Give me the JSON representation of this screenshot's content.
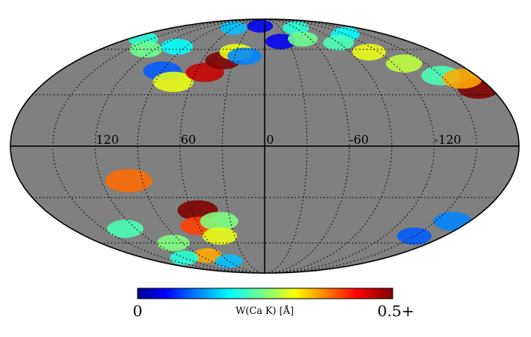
{
  "chart_data": {
    "type": "heatmap",
    "projection": "mollweide",
    "coordinate_system": "galactic",
    "lon_ticks": [
      "120",
      "60",
      "0",
      "-60",
      "-120"
    ],
    "lon_tick_values": [
      120,
      60,
      0,
      -60,
      -120
    ],
    "graticule_lat_values": [
      -60,
      -30,
      0,
      30,
      60
    ],
    "graticule_lon_values": [
      150,
      120,
      90,
      60,
      30,
      0,
      -30,
      -60,
      -90,
      -120,
      -150
    ],
    "masked_color": "#808080",
    "colorbar": {
      "label": "W(Ca K) [Å]",
      "min_label": "0",
      "max_label": "0.5+",
      "range": [
        0,
        0.5
      ],
      "colormap": "jet"
    },
    "regions": [
      {
        "l": 60,
        "b": 78,
        "value": 0.15
      },
      {
        "l": 10,
        "b": 80,
        "value": 0.05
      },
      {
        "l": -60,
        "b": 78,
        "value": 0.2
      },
      {
        "l": -120,
        "b": 72,
        "value": 0.18
      },
      {
        "l": 160,
        "b": 68,
        "value": 0.2
      },
      {
        "l": 130,
        "b": 60,
        "value": 0.24
      },
      {
        "l": 100,
        "b": 62,
        "value": 0.18
      },
      {
        "l": 90,
        "b": 45,
        "value": 0.1
      },
      {
        "l": 75,
        "b": 38,
        "value": 0.3
      },
      {
        "l": 52,
        "b": 44,
        "value": 0.46
      },
      {
        "l": 40,
        "b": 52,
        "value": 0.5
      },
      {
        "l": 30,
        "b": 58,
        "value": 0.3
      },
      {
        "l": 20,
        "b": 55,
        "value": 0.12
      },
      {
        "l": -20,
        "b": 66,
        "value": 0.05
      },
      {
        "l": -50,
        "b": 68,
        "value": 0.24
      },
      {
        "l": -90,
        "b": 65,
        "value": 0.22
      },
      {
        "l": -110,
        "b": 58,
        "value": 0.3
      },
      {
        "l": -130,
        "b": 50,
        "value": 0.28
      },
      {
        "l": -150,
        "b": 42,
        "value": 0.22
      },
      {
        "l": -170,
        "b": 34,
        "value": 0.5
      },
      {
        "l": -165,
        "b": 40,
        "value": 0.35
      },
      {
        "l": 100,
        "b": -20,
        "value": 0.38
      },
      {
        "l": 55,
        "b": -38,
        "value": 0.5
      },
      {
        "l": 60,
        "b": -48,
        "value": 0.4
      },
      {
        "l": 40,
        "b": -45,
        "value": 0.25
      },
      {
        "l": 45,
        "b": -55,
        "value": 0.3
      },
      {
        "l": 100,
        "b": -60,
        "value": 0.25
      },
      {
        "l": 130,
        "b": -50,
        "value": 0.22
      },
      {
        "l": 80,
        "b": -70,
        "value": 0.35
      },
      {
        "l": 120,
        "b": -72,
        "value": 0.2
      },
      {
        "l": 60,
        "b": -75,
        "value": 0.15
      },
      {
        "l": -150,
        "b": -55,
        "value": 0.1
      },
      {
        "l": -165,
        "b": -45,
        "value": 0.12
      }
    ]
  }
}
